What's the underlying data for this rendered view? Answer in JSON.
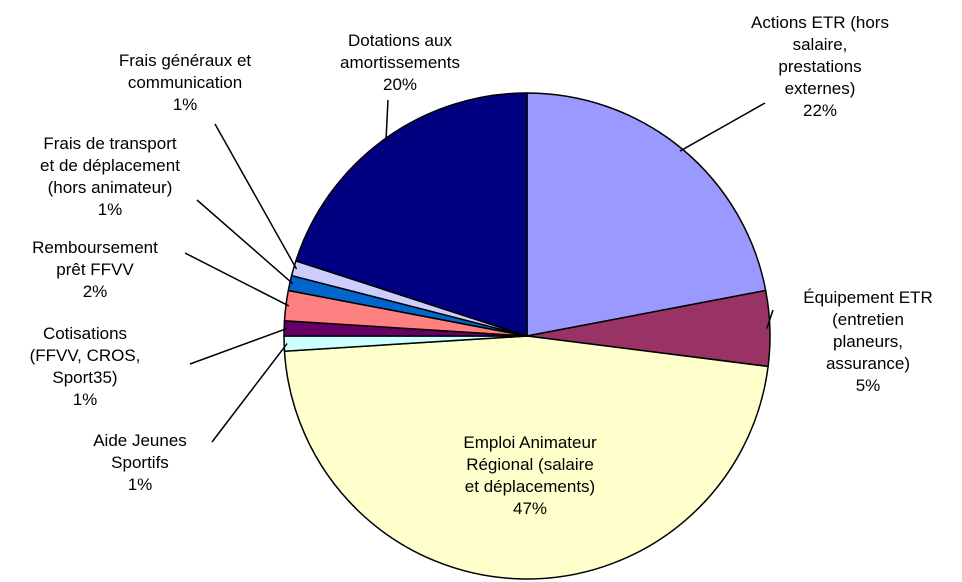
{
  "chart_data": {
    "type": "pie",
    "categories": [
      "Actions ETR (hors\nsalaire,\nprestations\nexternes)",
      "Équipement ETR\n(entretien\nplaneurs,\nassurance)",
      "Emploi Animateur\nRégional (salaire\net déplacements)",
      "Aide Jeunes\nSportifs",
      "Cotisations\n(FFVV, CROS,\nSport35)",
      "Remboursement\nprêt FFVV",
      "Frais de transport\net de déplacement\n(hors animateur)",
      "Frais généraux et\ncommunication",
      "Dotations aux\namortissements"
    ],
    "values": [
      22,
      5,
      47,
      1,
      1,
      2,
      1,
      1,
      20
    ],
    "value_labels": [
      "22%",
      "5%",
      "47%",
      "1%",
      "1%",
      "2%",
      "1%",
      "1%",
      "20%"
    ],
    "colors": [
      "#9999ff",
      "#993366",
      "#ffffcc",
      "#ccffff",
      "#660066",
      "#ff8080",
      "#0066cc",
      "#ccccff",
      "#000080"
    ]
  }
}
